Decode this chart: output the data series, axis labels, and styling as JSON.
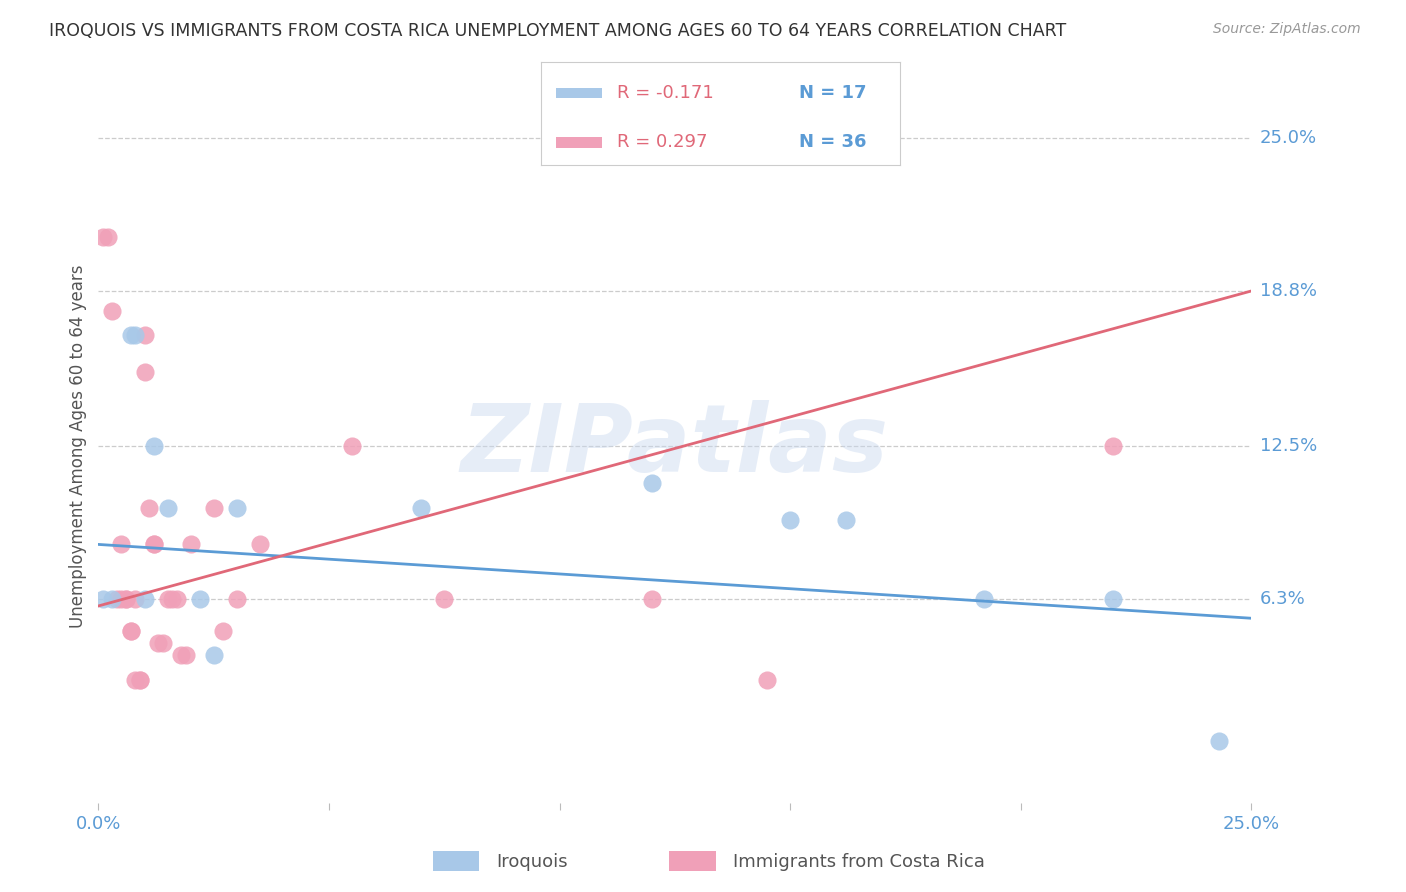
{
  "title": "IROQUOIS VS IMMIGRANTS FROM COSTA RICA UNEMPLOYMENT AMONG AGES 60 TO 64 YEARS CORRELATION CHART",
  "source": "Source: ZipAtlas.com",
  "ylabel": "Unemployment Among Ages 60 to 64 years",
  "xlim": [
    0.0,
    0.25
  ],
  "ylim": [
    -0.02,
    0.27
  ],
  "ytick_labels_right": [
    "6.3%",
    "12.5%",
    "18.8%",
    "25.0%"
  ],
  "ytick_vals_right": [
    0.063,
    0.125,
    0.188,
    0.25
  ],
  "grid_vals": [
    0.063,
    0.125,
    0.188,
    0.25
  ],
  "color_iroquois": "#a8c8e8",
  "color_costa_rica": "#f0a0b8",
  "color_line_iroquois": "#5b9bd5",
  "color_line_costa_rica": "#e06878",
  "color_axis": "#5b9bd5",
  "watermark": "ZIPatlas",
  "iroquois_x": [
    0.001,
    0.003,
    0.007,
    0.008,
    0.01,
    0.012,
    0.015,
    0.022,
    0.025,
    0.03,
    0.07,
    0.12,
    0.15,
    0.162,
    0.192,
    0.22,
    0.243
  ],
  "iroquois_y": [
    0.063,
    0.063,
    0.17,
    0.17,
    0.063,
    0.125,
    0.1,
    0.063,
    0.04,
    0.1,
    0.1,
    0.11,
    0.095,
    0.095,
    0.063,
    0.063,
    0.005
  ],
  "costa_rica_x": [
    0.001,
    0.002,
    0.003,
    0.004,
    0.005,
    0.005,
    0.006,
    0.006,
    0.007,
    0.007,
    0.008,
    0.008,
    0.009,
    0.009,
    0.01,
    0.01,
    0.011,
    0.012,
    0.012,
    0.013,
    0.014,
    0.015,
    0.016,
    0.017,
    0.018,
    0.019,
    0.02,
    0.025,
    0.027,
    0.03,
    0.035,
    0.055,
    0.075,
    0.12,
    0.145,
    0.22
  ],
  "costa_rica_y": [
    0.21,
    0.21,
    0.18,
    0.063,
    0.063,
    0.085,
    0.063,
    0.063,
    0.05,
    0.05,
    0.063,
    0.03,
    0.03,
    0.03,
    0.155,
    0.17,
    0.1,
    0.085,
    0.085,
    0.045,
    0.045,
    0.063,
    0.063,
    0.063,
    0.04,
    0.04,
    0.085,
    0.1,
    0.05,
    0.063,
    0.085,
    0.125,
    0.063,
    0.063,
    0.03,
    0.125
  ],
  "marker_size": 170,
  "reg_iroq": [
    0.0,
    0.25,
    0.085,
    0.055
  ],
  "reg_cr": [
    0.0,
    0.25,
    0.06,
    0.188
  ]
}
